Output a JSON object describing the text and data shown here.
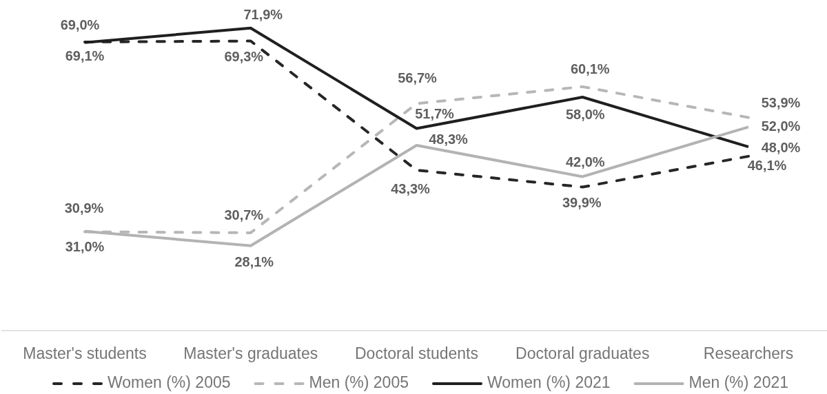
{
  "chart_data": {
    "type": "line",
    "categories": [
      "Master's students",
      "Master's graduates",
      "Doctoral students",
      "Doctoral graduates",
      "Researchers"
    ],
    "ylim": [
      11,
      77
    ],
    "tick_labels": "x",
    "legend": "bottom",
    "series": [
      {
        "name": "Women (%) 2005",
        "color": "#262626",
        "line_style": "dashed",
        "values": [
          69.1,
          69.3,
          43.3,
          39.9,
          46.1
        ],
        "value_labels": [
          "69,1%",
          "69,3%",
          "43,3%",
          "39,9%",
          "46,1%"
        ]
      },
      {
        "name": "Men (%) 2005",
        "color": "#b7b7b7",
        "line_style": "dashed",
        "values": [
          30.9,
          30.7,
          56.7,
          60.1,
          53.9
        ],
        "value_labels": [
          "30,9%",
          "30,7%",
          "56,7%",
          "60,1%",
          "53,9%"
        ]
      },
      {
        "name": "Women (%) 2021",
        "color": "#1f1f1f",
        "line_style": "solid",
        "values": [
          69.0,
          71.9,
          51.7,
          58.0,
          48.0
        ],
        "value_labels": [
          "69,0%",
          "71,9%",
          "51,7%",
          "58,0%",
          "48,0%"
        ]
      },
      {
        "name": "Men (%) 2021",
        "color": "#b3b3b3",
        "line_style": "solid",
        "values": [
          31.0,
          28.1,
          48.3,
          42.0,
          52.0
        ],
        "value_labels": [
          "31,0%",
          "28,1%",
          "48,3%",
          "42,0%",
          "52,0%"
        ]
      }
    ]
  }
}
